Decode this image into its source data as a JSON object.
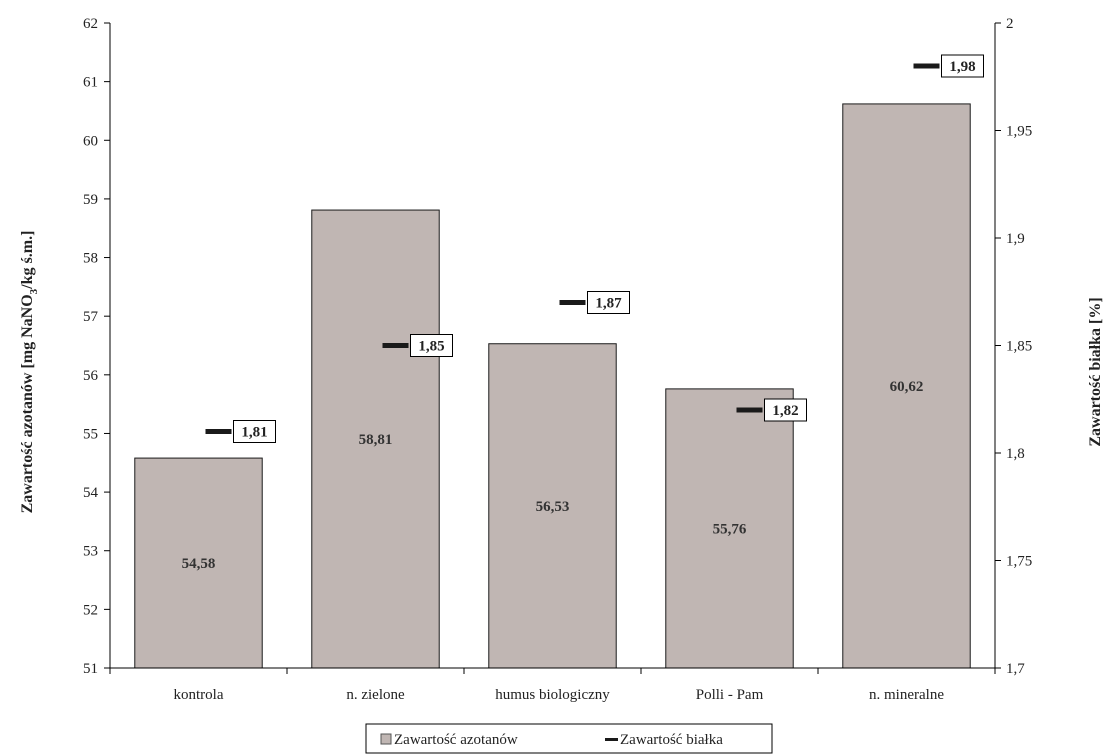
{
  "chart_data": {
    "type": "bar",
    "categories": [
      "kontrola",
      "n. zielone",
      "humus biologiczny",
      "Polli - Pam",
      "n. mineralne"
    ],
    "series": [
      {
        "name": "Zawartość azotanów",
        "type": "bar",
        "axis": "left",
        "values": [
          54.58,
          58.81,
          56.53,
          55.76,
          60.62
        ],
        "labels": [
          "54,58",
          "58,81",
          "56,53",
          "55,76",
          "60,62"
        ],
        "color": "#c0b6b3"
      },
      {
        "name": "Zawartość białka",
        "type": "marker",
        "axis": "right",
        "values": [
          1.81,
          1.85,
          1.87,
          1.82,
          1.98
        ],
        "labels": [
          "1,81",
          "1,85",
          "1,87",
          "1,82",
          "1,98"
        ],
        "color": "#1a1a1a"
      }
    ],
    "ylabel_left_prefix": "Zawartość azotanów [mg NaNO",
    "ylabel_left_sub": "3",
    "ylabel_left_suffix": "/kg ś.m.]",
    "ylabel_right": "Zawartość białka [%]",
    "ylim_left": [
      51,
      62
    ],
    "yticks_left": [
      "51",
      "52",
      "53",
      "54",
      "55",
      "56",
      "57",
      "58",
      "59",
      "60",
      "61",
      "62"
    ],
    "ylim_right": [
      1.7,
      2.0
    ],
    "yticks_right": [
      "1,7",
      "1,75",
      "1,8",
      "1,85",
      "1,9",
      "1,95",
      "2"
    ],
    "grid": false,
    "legend_position": "bottom-center"
  }
}
